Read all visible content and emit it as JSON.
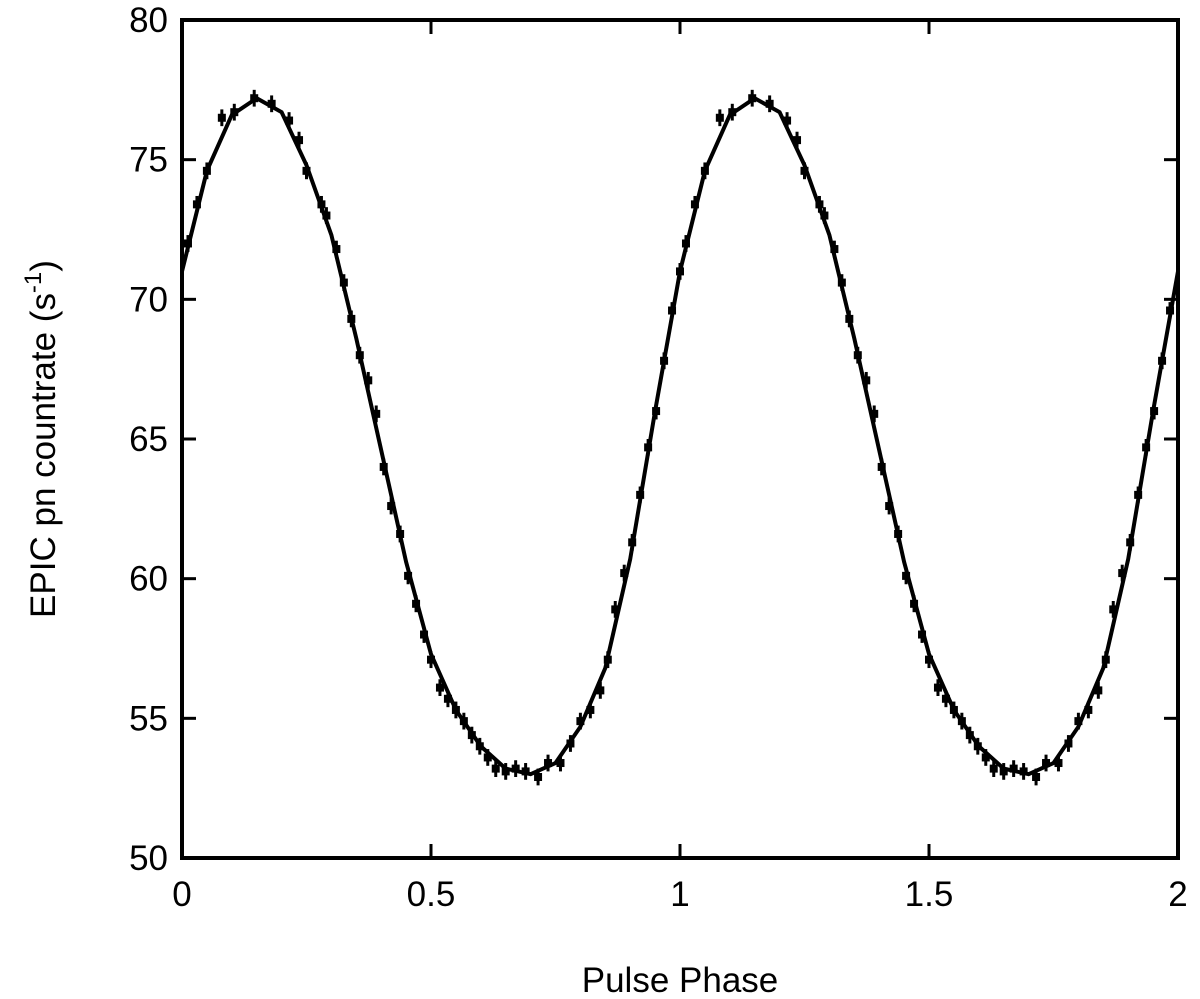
{
  "chart_data": {
    "type": "scatter",
    "xlabel": "Pulse Phase",
    "ylabel": "EPIC pn countrate (s",
    "ylabel_sup": "-1",
    "ylabel_end": ")",
    "xlim": [
      0,
      2
    ],
    "ylim": [
      50,
      80
    ],
    "xticks": [
      0,
      0.5,
      1,
      1.5,
      2
    ],
    "yticks": [
      50,
      55,
      60,
      65,
      70,
      75,
      80
    ],
    "mirror_ticks": true,
    "series": [
      {
        "type": "errorbar",
        "color": "#000000",
        "error": 0.3,
        "x": [
          0.012,
          0.03,
          0.05,
          0.08,
          0.105,
          0.145,
          0.18,
          0.215,
          0.235,
          0.25,
          0.28,
          0.29,
          0.31,
          0.325,
          0.34,
          0.357,
          0.374,
          0.39,
          0.405,
          0.42,
          0.438,
          0.454,
          0.47,
          0.486,
          0.5,
          0.518,
          0.534,
          0.55,
          0.566,
          0.582,
          0.598,
          0.614,
          0.63,
          0.65,
          0.67,
          0.69,
          0.715,
          0.735,
          0.76,
          0.78,
          0.8,
          0.82,
          0.84,
          0.855,
          0.87,
          0.888,
          0.904,
          0.92,
          0.936,
          0.952,
          0.968,
          0.984,
          1.0,
          1.012,
          1.03,
          1.05,
          1.08,
          1.105,
          1.145,
          1.18,
          1.215,
          1.235,
          1.25,
          1.28,
          1.29,
          1.31,
          1.325,
          1.34,
          1.357,
          1.374,
          1.39,
          1.405,
          1.42,
          1.438,
          1.454,
          1.47,
          1.486,
          1.5,
          1.518,
          1.534,
          1.55,
          1.566,
          1.582,
          1.598,
          1.614,
          1.63,
          1.65,
          1.67,
          1.69,
          1.715,
          1.735,
          1.76,
          1.78,
          1.8,
          1.82,
          1.84,
          1.855,
          1.87,
          1.888,
          1.904,
          1.92,
          1.936,
          1.952,
          1.968,
          1.984
        ],
        "values": [
          72.0,
          73.4,
          74.6,
          76.5,
          76.7,
          77.2,
          77.0,
          76.4,
          75.7,
          74.6,
          73.4,
          73.0,
          71.8,
          70.6,
          69.3,
          68.0,
          67.1,
          65.9,
          64.0,
          62.6,
          61.6,
          60.1,
          59.1,
          58.0,
          57.1,
          56.1,
          55.7,
          55.3,
          54.9,
          54.4,
          54.0,
          53.6,
          53.2,
          53.1,
          53.2,
          53.1,
          52.9,
          53.4,
          53.4,
          54.1,
          54.9,
          55.3,
          56.0,
          57.1,
          58.9,
          60.2,
          61.3,
          63.0,
          64.7,
          66.0,
          67.8,
          69.6,
          71.0,
          72.0,
          73.4,
          74.6,
          76.5,
          76.7,
          77.2,
          77.0,
          76.4,
          75.7,
          74.6,
          73.4,
          73.0,
          71.8,
          70.6,
          69.3,
          68.0,
          67.1,
          65.9,
          64.0,
          62.6,
          61.6,
          60.1,
          59.1,
          58.0,
          57.1,
          56.1,
          55.7,
          55.3,
          54.9,
          54.4,
          54.0,
          53.6,
          53.2,
          53.1,
          53.2,
          53.1,
          52.9,
          53.4,
          53.4,
          54.1,
          54.9,
          55.3,
          56.0,
          57.1,
          58.9,
          60.2,
          61.3,
          63.0,
          64.7,
          66.0,
          67.8,
          69.6
        ]
      },
      {
        "type": "line",
        "color": "#000000",
        "x": [
          0,
          0.05,
          0.1,
          0.15,
          0.2,
          0.25,
          0.3,
          0.35,
          0.4,
          0.45,
          0.5,
          0.55,
          0.6,
          0.65,
          0.7,
          0.75,
          0.8,
          0.85,
          0.9,
          0.95,
          1,
          1.05,
          1.1,
          1.15,
          1.2,
          1.25,
          1.3,
          1.35,
          1.4,
          1.45,
          1.5,
          1.55,
          1.6,
          1.65,
          1.7,
          1.75,
          1.8,
          1.85,
          1.9,
          1.95,
          2
        ],
        "values": [
          71.0,
          74.6,
          76.6,
          77.2,
          76.7,
          74.8,
          72.3,
          68.6,
          64.6,
          60.6,
          57.3,
          55.3,
          54.0,
          53.2,
          53.0,
          53.4,
          54.7,
          56.8,
          60.7,
          66.0,
          71.0,
          74.6,
          76.6,
          77.2,
          76.7,
          74.8,
          72.3,
          68.6,
          64.6,
          60.6,
          57.3,
          55.3,
          54.0,
          53.2,
          53.0,
          53.4,
          54.7,
          56.8,
          60.7,
          66.0,
          71.0
        ]
      }
    ]
  }
}
